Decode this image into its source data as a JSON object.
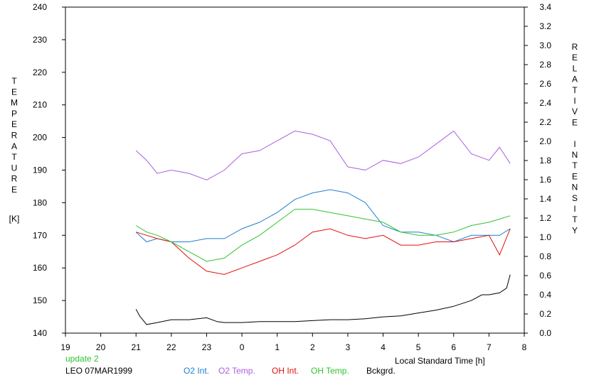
{
  "colors": {
    "o2_int": "#1f7fd0",
    "o2_temp": "#a85fe0",
    "oh_int": "#e01010",
    "oh_temp": "#2fc22f",
    "bckgrd": "#000000",
    "update": "#2fc22f",
    "axis": "#000000"
  },
  "chart_data": {
    "type": "line",
    "xlabel": "Local Standard Time [h]",
    "ylabel_left_letters": [
      "T",
      "E",
      "M",
      "P",
      "E",
      "R",
      "A",
      "T",
      "U",
      "R",
      "E"
    ],
    "ylabel_left_unit": "[K]",
    "ylabel_right_letters": [
      "R",
      "E",
      "L",
      "A",
      "T",
      "I",
      "V",
      "E",
      " ",
      "I",
      "N",
      "T",
      "E",
      "N",
      "S",
      "I",
      "T",
      "Y"
    ],
    "x_ticks": [
      "19",
      "20",
      "21",
      "22",
      "23",
      "0",
      "1",
      "2",
      "3",
      "4",
      "5",
      "6",
      "7",
      "8"
    ],
    "xlim": [
      19,
      32
    ],
    "y_left_ticks": [
      140,
      150,
      160,
      170,
      180,
      190,
      200,
      210,
      220,
      230,
      240
    ],
    "ylim_left": [
      140,
      240
    ],
    "y_right_ticks": [
      "0.0",
      "0.2",
      "0.4",
      "0.6",
      "0.8",
      "1.0",
      "1.2",
      "1.4",
      "1.6",
      "1.8",
      "2.0",
      "2.2",
      "2.4",
      "2.6",
      "2.8",
      "3.0",
      "3.2",
      "3.4"
    ],
    "ylim_right": [
      0,
      3.4
    ],
    "annotation_update": "update 2",
    "annotation_station": "LEO 07MAR1999",
    "series": [
      {
        "name": "O2 Int.",
        "key": "o2_int",
        "axis": "left",
        "x": [
          21.0,
          21.3,
          21.6,
          22.0,
          22.5,
          23.0,
          23.5,
          24.0,
          24.5,
          25.0,
          25.5,
          26.0,
          26.5,
          27.0,
          27.5,
          28.0,
          28.5,
          29.0,
          29.5,
          30.0,
          30.5,
          31.0,
          31.3,
          31.6
        ],
        "y": [
          171,
          168,
          169,
          168,
          168,
          169,
          169,
          172,
          174,
          177,
          181,
          183,
          184,
          183,
          180,
          173,
          171,
          171,
          170,
          168,
          170,
          170,
          170,
          172
        ]
      },
      {
        "name": "O2 Temp.",
        "key": "o2_temp",
        "axis": "left",
        "x": [
          21.0,
          21.3,
          21.6,
          22.0,
          22.5,
          23.0,
          23.5,
          24.0,
          24.5,
          25.0,
          25.5,
          26.0,
          26.5,
          27.0,
          27.5,
          28.0,
          28.5,
          29.0,
          29.5,
          30.0,
          30.5,
          31.0,
          31.3,
          31.6
        ],
        "y": [
          196,
          193,
          189,
          190,
          189,
          187,
          190,
          195,
          196,
          199,
          202,
          201,
          199,
          191,
          190,
          193,
          192,
          194,
          198,
          202,
          195,
          193,
          197,
          192
        ]
      },
      {
        "name": "OH Int.",
        "key": "oh_int",
        "axis": "left",
        "x": [
          21.0,
          21.3,
          21.6,
          22.0,
          22.5,
          23.0,
          23.5,
          24.0,
          24.5,
          25.0,
          25.5,
          26.0,
          26.5,
          27.0,
          27.5,
          28.0,
          28.5,
          29.0,
          29.5,
          30.0,
          30.5,
          31.0,
          31.3,
          31.6
        ],
        "y": [
          171,
          170,
          169,
          168,
          163,
          159,
          158,
          160,
          162,
          164,
          167,
          171,
          172,
          170,
          169,
          170,
          167,
          167,
          168,
          168,
          169,
          170,
          164,
          172
        ]
      },
      {
        "name": "OH Temp.",
        "key": "oh_temp",
        "axis": "left",
        "x": [
          21.0,
          21.3,
          21.6,
          22.0,
          22.5,
          23.0,
          23.5,
          24.0,
          24.5,
          25.0,
          25.5,
          26.0,
          26.5,
          27.0,
          27.5,
          28.0,
          28.5,
          29.0,
          29.5,
          30.0,
          30.5,
          31.0,
          31.3,
          31.6
        ],
        "y": [
          173,
          171,
          170,
          168,
          165,
          162,
          163,
          167,
          170,
          174,
          178,
          178,
          177,
          176,
          175,
          174,
          171,
          170,
          170,
          171,
          173,
          174,
          175,
          176
        ]
      },
      {
        "name": "Bckgrd.",
        "key": "bckgrd",
        "axis": "right",
        "x": [
          21.0,
          21.1,
          21.3,
          21.6,
          22.0,
          22.5,
          23.0,
          23.3,
          23.5,
          24.0,
          24.5,
          25.0,
          25.5,
          26.0,
          26.5,
          27.0,
          27.5,
          28.0,
          28.5,
          29.0,
          29.5,
          30.0,
          30.5,
          30.8,
          31.0,
          31.3,
          31.5,
          31.6
        ],
        "y": [
          0.25,
          0.18,
          0.09,
          0.11,
          0.14,
          0.14,
          0.16,
          0.12,
          0.11,
          0.11,
          0.12,
          0.12,
          0.12,
          0.13,
          0.14,
          0.14,
          0.15,
          0.17,
          0.18,
          0.21,
          0.24,
          0.28,
          0.34,
          0.4,
          0.4,
          0.42,
          0.47,
          0.61
        ]
      }
    ]
  }
}
